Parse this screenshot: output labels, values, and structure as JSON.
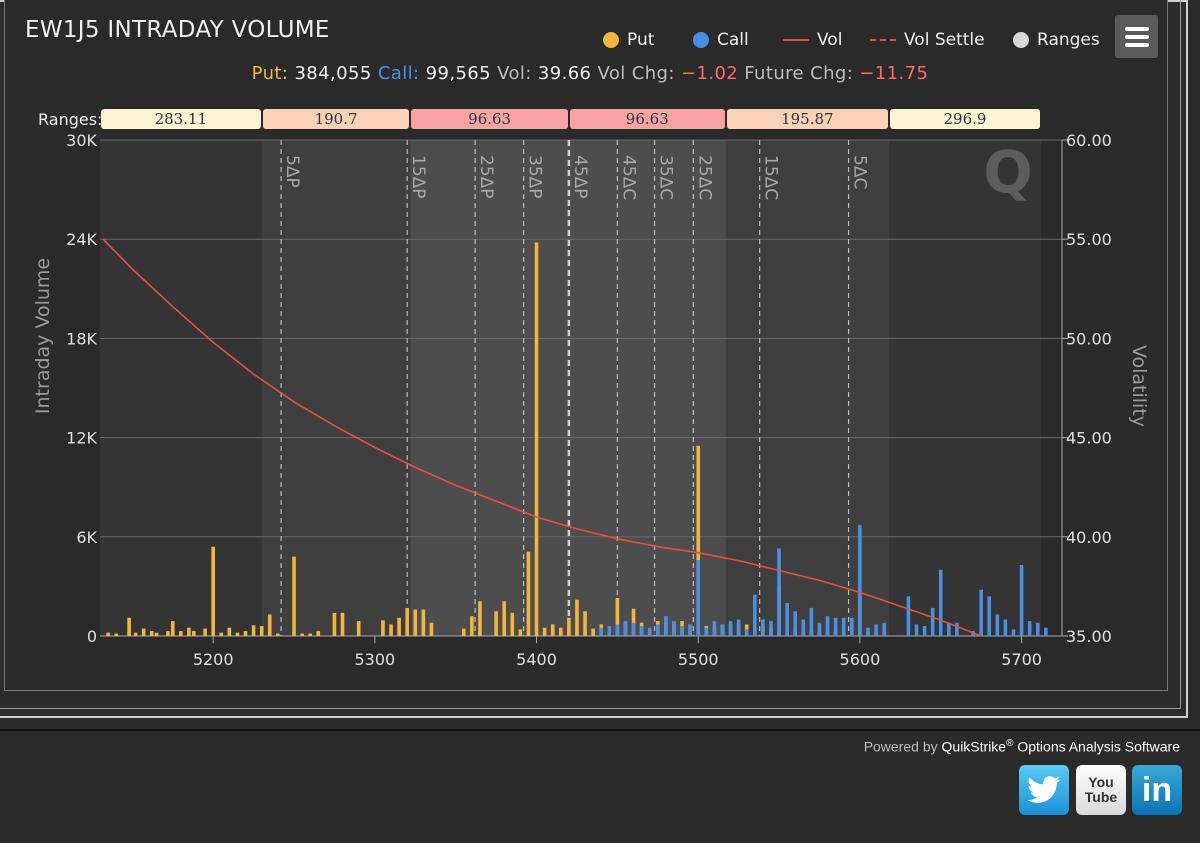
{
  "header": {
    "title": "EW1J5 INTRADAY VOLUME",
    "legend": [
      {
        "label": "Put",
        "color": "#f4b53d",
        "kind": "dot"
      },
      {
        "label": "Call",
        "color": "#4a90e2",
        "kind": "dot"
      },
      {
        "label": "Vol",
        "color": "#e25241",
        "kind": "line"
      },
      {
        "label": "Vol Settle",
        "color": "#e25241",
        "kind": "dash"
      },
      {
        "label": "Ranges",
        "color": "#d9d9d9",
        "kind": "dot"
      }
    ],
    "menu_icon": "hamburger-icon"
  },
  "summary": {
    "put_label": "Put:",
    "put_value": "384,055",
    "call_label": "Call:",
    "call_value": "99,565",
    "vol_label": "Vol:",
    "vol_value": "39.66",
    "volchg_label": "Vol Chg:",
    "volchg_value": "−1.02",
    "futchg_label": "Future Chg:",
    "futchg_value": "−11.75"
  },
  "ranges": {
    "label": "Ranges:",
    "boxes": [
      {
        "value": "283.11",
        "color": "#fdf3d5"
      },
      {
        "value": "190.7",
        "color": "#fbd2b8"
      },
      {
        "value": "96.63",
        "color": "#f8a3a3"
      },
      {
        "value": "96.63",
        "color": "#f8a3a3"
      },
      {
        "value": "195.87",
        "color": "#fbd2b8"
      },
      {
        "value": "296.9",
        "color": "#fdf3d5"
      }
    ]
  },
  "chart_data": {
    "type": "bar",
    "ylabel": "Intraday Volume",
    "y2label": "Volatility",
    "ylim": [
      0,
      30000
    ],
    "y2lim": [
      35,
      60
    ],
    "xlim": [
      5130,
      5725
    ],
    "xticks": [
      "5200",
      "5300",
      "5400",
      "5500",
      "5600",
      "5700"
    ],
    "yticks": [
      "0",
      "6K",
      "12K",
      "18K",
      "24K",
      "30K"
    ],
    "y2ticks": [
      "35.00",
      "40.00",
      "45.00",
      "50.00",
      "55.00",
      "60.00"
    ],
    "delta_lines": [
      {
        "label": "5ΔP",
        "x": 5242,
        "style": "dashed"
      },
      {
        "label": "15ΔP",
        "x": 5320,
        "style": "dashed"
      },
      {
        "label": "25ΔP",
        "x": 5362,
        "style": "dashed"
      },
      {
        "label": "35ΔP",
        "x": 5392,
        "style": "dashed"
      },
      {
        "label": "45ΔP",
        "x": 5420,
        "style": "thick-dashed"
      },
      {
        "label": "45ΔC",
        "x": 5450,
        "style": "dashed"
      },
      {
        "label": "35ΔC",
        "x": 5473,
        "style": "dashed"
      },
      {
        "label": "25ΔC",
        "x": 5497,
        "style": "dashed"
      },
      {
        "label": "15ΔC",
        "x": 5538,
        "style": "dashed"
      },
      {
        "label": "5ΔC",
        "x": 5593,
        "style": "dashed"
      }
    ],
    "range_bands": [
      {
        "from": 5130,
        "to": 5230,
        "shade": 0.05
      },
      {
        "from": 5230,
        "to": 5322,
        "shade": 0.1
      },
      {
        "from": 5322,
        "to": 5420,
        "shade": 0.17
      },
      {
        "from": 5420,
        "to": 5517,
        "shade": 0.17
      },
      {
        "from": 5517,
        "to": 5618,
        "shade": 0.1
      },
      {
        "from": 5618,
        "to": 5712,
        "shade": 0.05
      }
    ],
    "series": [
      {
        "name": "Put",
        "color": "#f4b53d",
        "points": [
          [
            5135,
            200
          ],
          [
            5140,
            150
          ],
          [
            5148,
            1100
          ],
          [
            5152,
            200
          ],
          [
            5157,
            450
          ],
          [
            5162,
            300
          ],
          [
            5165,
            200
          ],
          [
            5172,
            300
          ],
          [
            5175,
            900
          ],
          [
            5180,
            300
          ],
          [
            5185,
            500
          ],
          [
            5188,
            300
          ],
          [
            5195,
            450
          ],
          [
            5200,
            5400
          ],
          [
            5205,
            200
          ],
          [
            5210,
            500
          ],
          [
            5215,
            200
          ],
          [
            5220,
            300
          ],
          [
            5225,
            650
          ],
          [
            5230,
            600
          ],
          [
            5235,
            1300
          ],
          [
            5240,
            150
          ],
          [
            5250,
            4800
          ],
          [
            5255,
            150
          ],
          [
            5260,
            150
          ],
          [
            5265,
            300
          ],
          [
            5275,
            1400
          ],
          [
            5280,
            1400
          ],
          [
            5290,
            900
          ],
          [
            5305,
            950
          ],
          [
            5310,
            700
          ],
          [
            5315,
            1100
          ],
          [
            5320,
            1700
          ],
          [
            5325,
            1600
          ],
          [
            5330,
            1600
          ],
          [
            5335,
            800
          ],
          [
            5355,
            450
          ],
          [
            5360,
            1200
          ],
          [
            5365,
            2100
          ],
          [
            5375,
            1500
          ],
          [
            5380,
            2100
          ],
          [
            5385,
            1400
          ],
          [
            5390,
            400
          ],
          [
            5395,
            5100
          ],
          [
            5400,
            23800
          ],
          [
            5405,
            500
          ],
          [
            5410,
            700
          ],
          [
            5415,
            500
          ],
          [
            5420,
            1100
          ],
          [
            5425,
            2200
          ],
          [
            5430,
            1500
          ],
          [
            5435,
            450
          ],
          [
            5440,
            700
          ],
          [
            5450,
            2300
          ],
          [
            5455,
            750
          ],
          [
            5460,
            1650
          ],
          [
            5465,
            800
          ],
          [
            5470,
            450
          ],
          [
            5475,
            900
          ],
          [
            5480,
            800
          ],
          [
            5485,
            800
          ],
          [
            5490,
            900
          ],
          [
            5495,
            700
          ],
          [
            5500,
            11500
          ],
          [
            5505,
            600
          ],
          [
            5510,
            600
          ],
          [
            5515,
            700
          ],
          [
            5520,
            700
          ],
          [
            5525,
            700
          ],
          [
            5530,
            700
          ],
          [
            5535,
            400
          ],
          [
            5540,
            600
          ],
          [
            5545,
            500
          ],
          [
            5550,
            3000
          ],
          [
            5560,
            500
          ],
          [
            5565,
            300
          ],
          [
            5570,
            300
          ],
          [
            5575,
            200
          ],
          [
            5580,
            200
          ],
          [
            5585,
            300
          ],
          [
            5590,
            300
          ],
          [
            5595,
            200
          ],
          [
            5600,
            2800
          ],
          [
            5605,
            200
          ],
          [
            5610,
            200
          ],
          [
            5615,
            200
          ]
        ]
      },
      {
        "name": "Call",
        "color": "#4a90e2",
        "points": [
          [
            5440,
            500
          ],
          [
            5445,
            600
          ],
          [
            5450,
            700
          ],
          [
            5455,
            900
          ],
          [
            5460,
            800
          ],
          [
            5465,
            600
          ],
          [
            5470,
            500
          ],
          [
            5475,
            700
          ],
          [
            5480,
            1200
          ],
          [
            5485,
            900
          ],
          [
            5490,
            600
          ],
          [
            5495,
            700
          ],
          [
            5500,
            4600
          ],
          [
            5505,
            500
          ],
          [
            5510,
            900
          ],
          [
            5515,
            700
          ],
          [
            5520,
            900
          ],
          [
            5525,
            1000
          ],
          [
            5530,
            400
          ],
          [
            5535,
            2500
          ],
          [
            5540,
            1000
          ],
          [
            5545,
            900
          ],
          [
            5550,
            5300
          ],
          [
            5555,
            2000
          ],
          [
            5560,
            1500
          ],
          [
            5565,
            1000
          ],
          [
            5570,
            1700
          ],
          [
            5575,
            800
          ],
          [
            5580,
            1200
          ],
          [
            5585,
            1100
          ],
          [
            5590,
            1100
          ],
          [
            5595,
            1100
          ],
          [
            5600,
            6700
          ],
          [
            5605,
            500
          ],
          [
            5610,
            700
          ],
          [
            5615,
            800
          ],
          [
            5630,
            2400
          ],
          [
            5635,
            700
          ],
          [
            5640,
            600
          ],
          [
            5645,
            1700
          ],
          [
            5650,
            4000
          ],
          [
            5655,
            800
          ],
          [
            5660,
            800
          ],
          [
            5670,
            300
          ],
          [
            5675,
            2800
          ],
          [
            5680,
            2400
          ],
          [
            5685,
            1300
          ],
          [
            5690,
            1000
          ],
          [
            5695,
            400
          ],
          [
            5700,
            4300
          ],
          [
            5705,
            900
          ],
          [
            5710,
            800
          ],
          [
            5715,
            500
          ]
        ]
      },
      {
        "name": "Vol",
        "color": "#e25241",
        "type": "line",
        "points": [
          [
            5132,
            55.0
          ],
          [
            5150,
            53.5
          ],
          [
            5175,
            51.6
          ],
          [
            5200,
            49.8
          ],
          [
            5225,
            48.2
          ],
          [
            5250,
            46.8
          ],
          [
            5275,
            45.6
          ],
          [
            5300,
            44.5
          ],
          [
            5325,
            43.5
          ],
          [
            5350,
            42.6
          ],
          [
            5375,
            41.8
          ],
          [
            5400,
            41.0
          ],
          [
            5425,
            40.4
          ],
          [
            5450,
            39.9
          ],
          [
            5475,
            39.5
          ],
          [
            5500,
            39.2
          ],
          [
            5525,
            38.8
          ],
          [
            5550,
            38.3
          ],
          [
            5575,
            37.8
          ],
          [
            5600,
            37.2
          ],
          [
            5625,
            36.5
          ],
          [
            5650,
            35.8
          ],
          [
            5675,
            35.0
          ]
        ]
      }
    ]
  },
  "footer": {
    "powered_prefix": "Powered by ",
    "brand": "QuikStrike",
    "reg": "®",
    "suffix": " Options Analysis Software",
    "social": [
      "twitter-icon",
      "youtube-icon",
      "linkedin-icon"
    ],
    "youtube_text": "You Tube",
    "linkedin_text": "in"
  }
}
